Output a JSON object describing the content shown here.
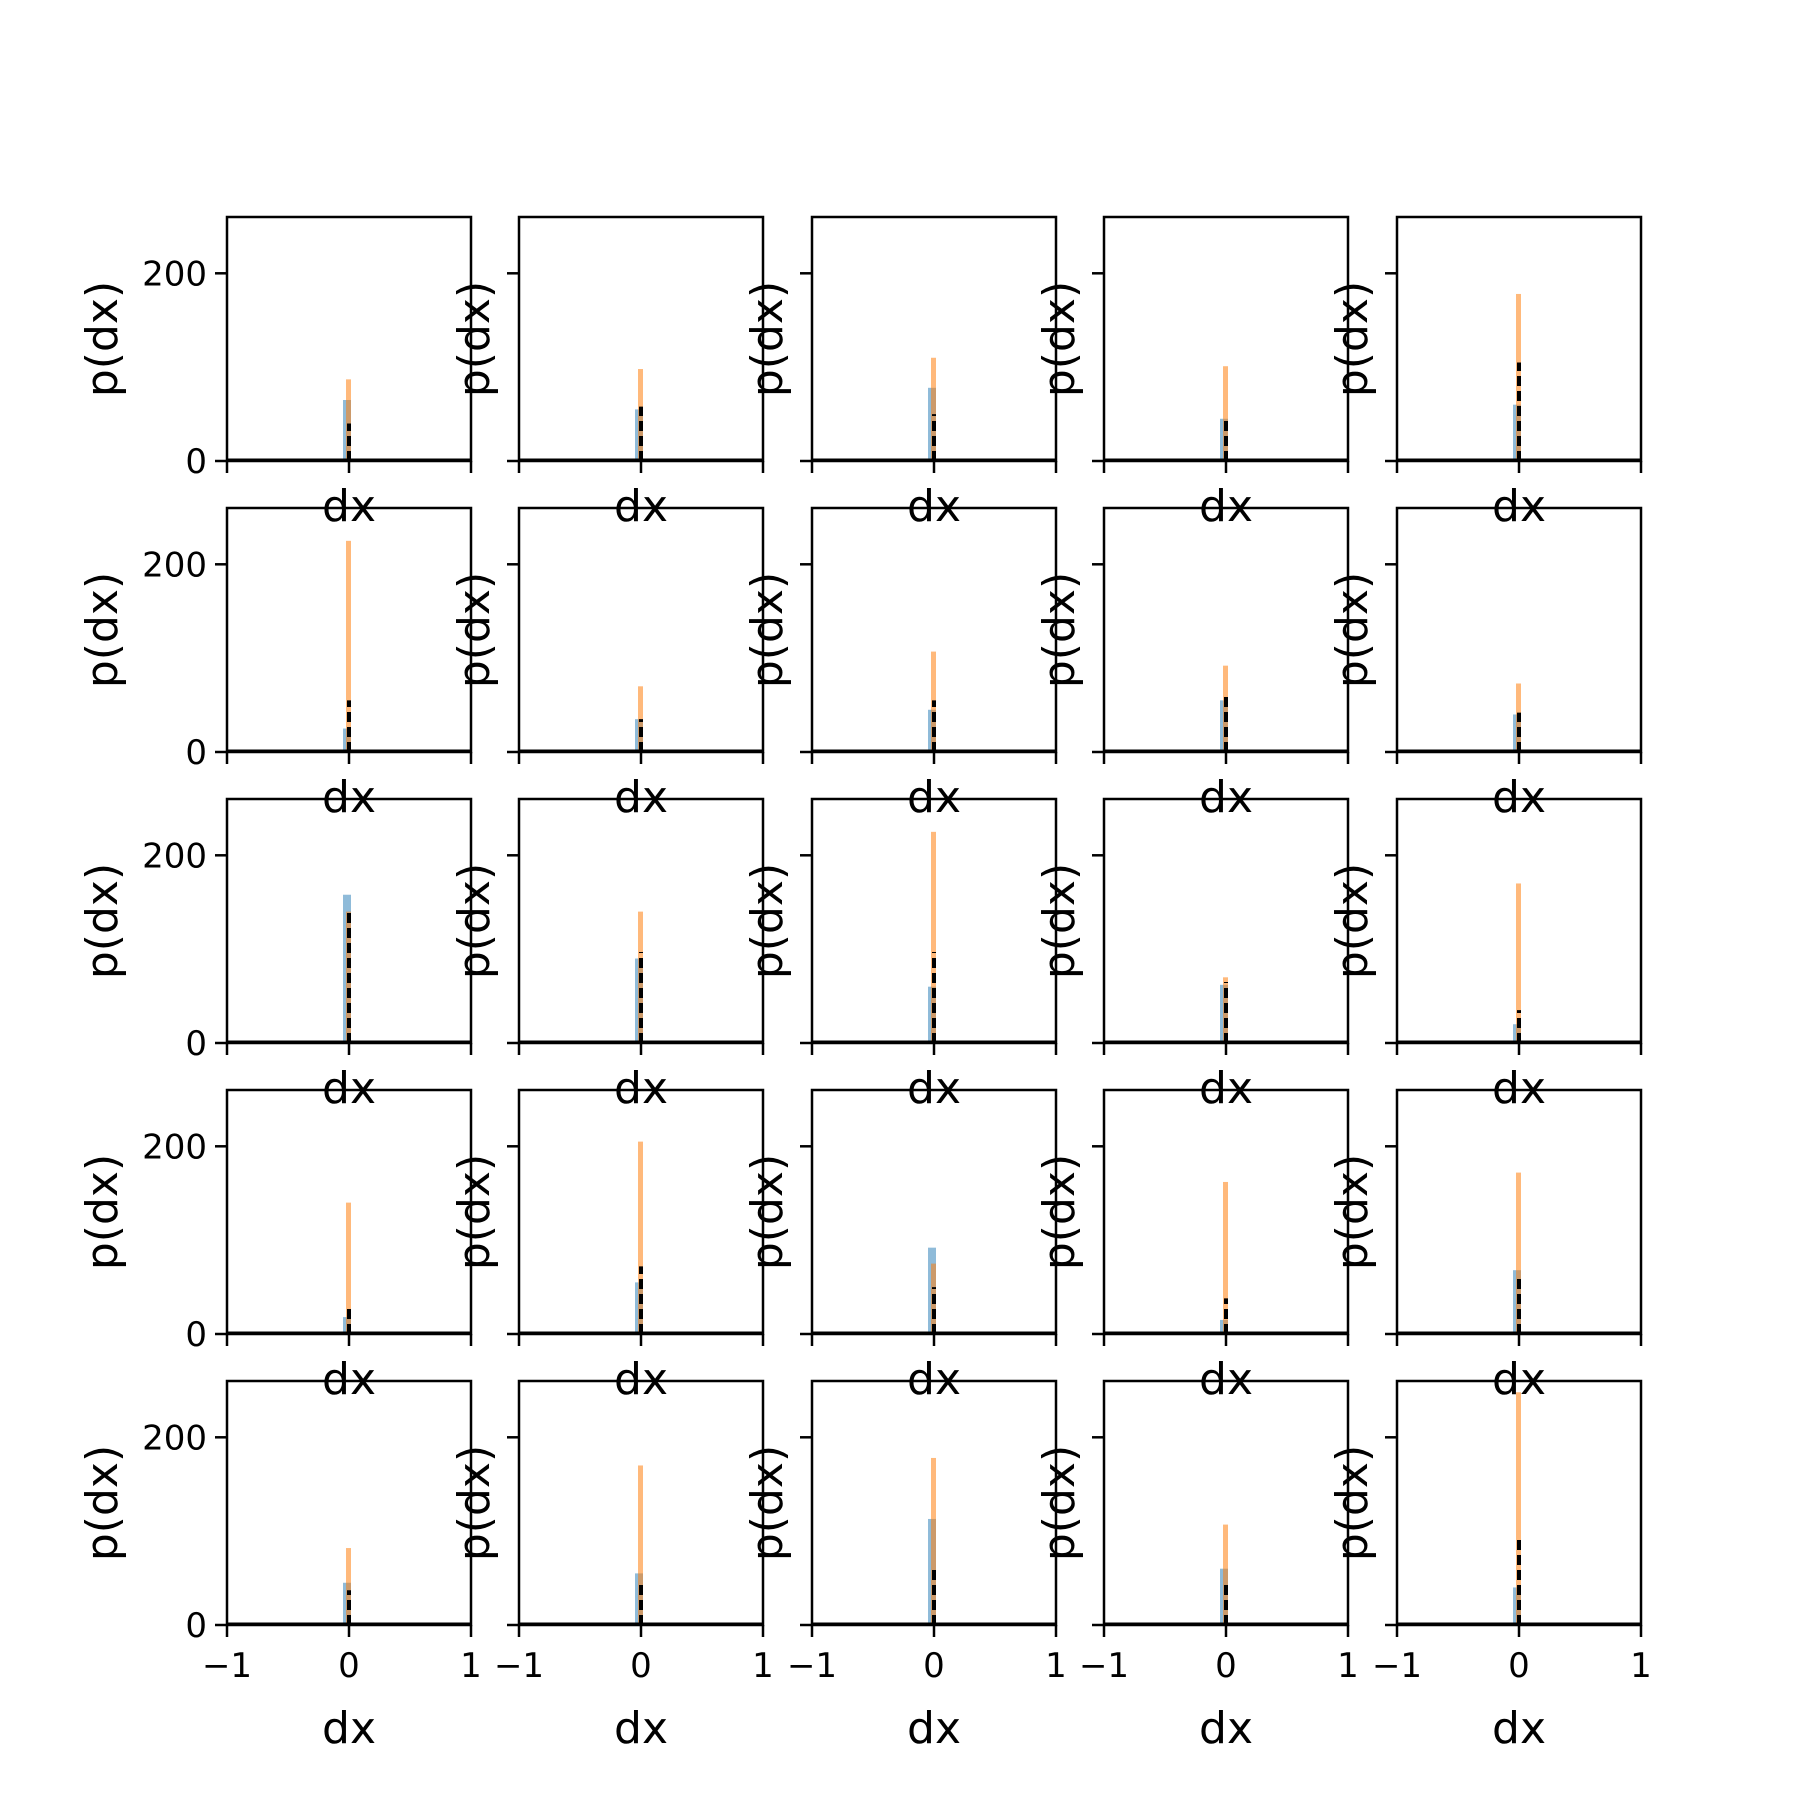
{
  "figure": {
    "xlabel": "dx",
    "ylabel": "p(dx)",
    "colors": {
      "series_a": "#1f77b4",
      "series_b": "#ff7f0e",
      "overlay": "#000000"
    }
  },
  "chart_data": {
    "type": "histogram-grid",
    "rows": 5,
    "cols": 5,
    "xlim": [
      -1,
      1
    ],
    "ylim": [
      0,
      260
    ],
    "xticks": [
      -1,
      0,
      1
    ],
    "yticks": [
      0,
      200
    ],
    "xtick_labels": [
      "−1",
      "0",
      "1"
    ],
    "ytick_labels": [
      "0",
      "200"
    ],
    "series_colors": {
      "blue": "#1f77b4",
      "orange": "#ff7f0e",
      "black_dashed": "#000000"
    },
    "panels": [
      {
        "orange": 87,
        "blue": 65,
        "black": 40
      },
      {
        "orange": 98,
        "blue": 55,
        "black": 58
      },
      {
        "orange": 110,
        "blue": 78,
        "black": 50
      },
      {
        "orange": 101,
        "blue": 45,
        "black": 45
      },
      {
        "orange": 178,
        "blue": 60,
        "black": 105
      },
      {
        "orange": 225,
        "blue": 25,
        "black": 55
      },
      {
        "orange": 70,
        "blue": 35,
        "black": 35
      },
      {
        "orange": 107,
        "blue": 45,
        "black": 55
      },
      {
        "orange": 92,
        "blue": 55,
        "black": 60
      },
      {
        "orange": 73,
        "blue": 40,
        "black": 42
      },
      {
        "orange": 140,
        "blue": 158,
        "black": 143
      },
      {
        "orange": 140,
        "blue": 90,
        "black": 97
      },
      {
        "orange": 225,
        "blue": 60,
        "black": 97
      },
      {
        "orange": 70,
        "blue": 62,
        "black": 65
      },
      {
        "orange": 170,
        "blue": 20,
        "black": 35
      },
      {
        "orange": 140,
        "blue": 18,
        "black": 28
      },
      {
        "orange": 205,
        "blue": 55,
        "black": 72
      },
      {
        "orange": 75,
        "blue": 92,
        "black": 50
      },
      {
        "orange": 162,
        "blue": 15,
        "black": 38
      },
      {
        "orange": 172,
        "blue": 68,
        "black": 62
      },
      {
        "orange": 82,
        "blue": 45,
        "black": 37
      },
      {
        "orange": 170,
        "blue": 55,
        "black": 45
      },
      {
        "orange": 178,
        "blue": 113,
        "black": 60
      },
      {
        "orange": 107,
        "blue": 60,
        "black": 45
      },
      {
        "orange": 248,
        "blue": 40,
        "black": 95
      }
    ]
  }
}
